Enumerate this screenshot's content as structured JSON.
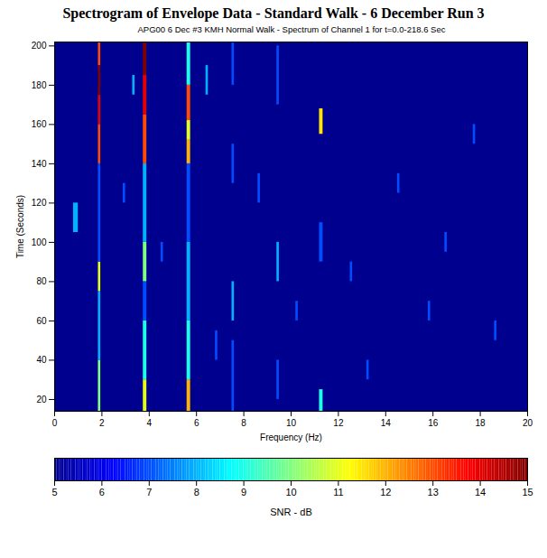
{
  "chart_data": {
    "type": "heatmap",
    "title": "Spectrogram of Envelope Data - Standard Walk - 6 December Run 3",
    "subtitle": "APG00 6 Dec #3 KMH Normal Walk - Spectrum of Channel 1 for t=0.0-218.6 Sec",
    "xlabel": "Frequency (Hz)",
    "ylabel": "Time (Seconds)",
    "xlim": [
      0,
      20
    ],
    "ylim": [
      14,
      202
    ],
    "xticks": [
      0,
      2,
      4,
      6,
      8,
      10,
      12,
      14,
      16,
      18,
      20
    ],
    "yticks": [
      20,
      40,
      60,
      80,
      100,
      120,
      140,
      160,
      180,
      200
    ],
    "cells": [
      [
        1.85,
        1.95,
        14,
        40,
        10
      ],
      [
        1.85,
        1.95,
        40,
        75,
        8
      ],
      [
        1.85,
        1.95,
        75,
        90,
        11
      ],
      [
        1.85,
        1.95,
        90,
        140,
        7
      ],
      [
        1.85,
        1.95,
        140,
        160,
        13
      ],
      [
        1.85,
        1.95,
        160,
        175,
        14
      ],
      [
        1.85,
        1.95,
        175,
        190,
        15
      ],
      [
        1.85,
        1.95,
        190,
        202,
        13
      ],
      [
        3.75,
        3.9,
        14,
        30,
        11
      ],
      [
        3.75,
        3.9,
        30,
        60,
        9
      ],
      [
        3.75,
        3.9,
        60,
        80,
        7
      ],
      [
        3.75,
        3.9,
        80,
        100,
        10
      ],
      [
        3.75,
        3.9,
        100,
        140,
        8
      ],
      [
        3.75,
        3.9,
        140,
        165,
        13
      ],
      [
        3.75,
        3.9,
        165,
        185,
        14
      ],
      [
        3.75,
        3.9,
        185,
        202,
        15
      ],
      [
        5.6,
        5.75,
        14,
        30,
        12
      ],
      [
        5.6,
        5.75,
        30,
        60,
        9
      ],
      [
        5.6,
        5.75,
        60,
        100,
        8
      ],
      [
        5.6,
        5.75,
        100,
        140,
        7
      ],
      [
        5.6,
        5.75,
        140,
        152,
        12
      ],
      [
        5.6,
        5.75,
        152,
        162,
        11
      ],
      [
        5.6,
        5.75,
        162,
        180,
        13
      ],
      [
        5.6,
        5.75,
        180,
        202,
        9
      ],
      [
        7.5,
        7.6,
        14,
        50,
        7
      ],
      [
        7.5,
        7.6,
        60,
        80,
        8
      ],
      [
        7.5,
        7.6,
        130,
        150,
        7
      ],
      [
        7.5,
        7.6,
        180,
        202,
        7
      ],
      [
        9.4,
        9.5,
        20,
        40,
        7
      ],
      [
        9.4,
        9.5,
        80,
        100,
        8
      ],
      [
        9.4,
        9.5,
        170,
        200,
        7
      ],
      [
        11.2,
        11.35,
        14,
        25,
        9
      ],
      [
        11.2,
        11.35,
        90,
        110,
        7
      ],
      [
        11.2,
        11.35,
        155,
        168,
        11.5
      ],
      [
        0.8,
        1.0,
        105,
        120,
        8
      ],
      [
        4.5,
        4.6,
        90,
        100,
        7
      ],
      [
        6.8,
        6.9,
        40,
        55,
        7
      ],
      [
        8.6,
        8.7,
        120,
        135,
        7
      ],
      [
        10.2,
        10.3,
        60,
        70,
        7
      ],
      [
        12.5,
        12.6,
        80,
        90,
        7
      ],
      [
        13.2,
        13.3,
        30,
        40,
        7
      ],
      [
        14.5,
        14.6,
        125,
        135,
        7
      ],
      [
        15.8,
        15.9,
        60,
        70,
        7
      ],
      [
        16.5,
        16.6,
        95,
        105,
        7
      ],
      [
        17.7,
        17.8,
        150,
        160,
        7
      ],
      [
        18.6,
        18.7,
        50,
        60,
        7
      ],
      [
        3.3,
        3.4,
        175,
        185,
        8
      ],
      [
        6.4,
        6.5,
        175,
        190,
        8
      ],
      [
        2.9,
        3.0,
        120,
        130,
        7
      ]
    ],
    "colorbar": {
      "label": "SNR - dB",
      "range": [
        5,
        15
      ],
      "ticks": [
        5,
        6,
        7,
        8,
        9,
        10,
        11,
        12,
        13,
        14,
        15
      ]
    }
  }
}
